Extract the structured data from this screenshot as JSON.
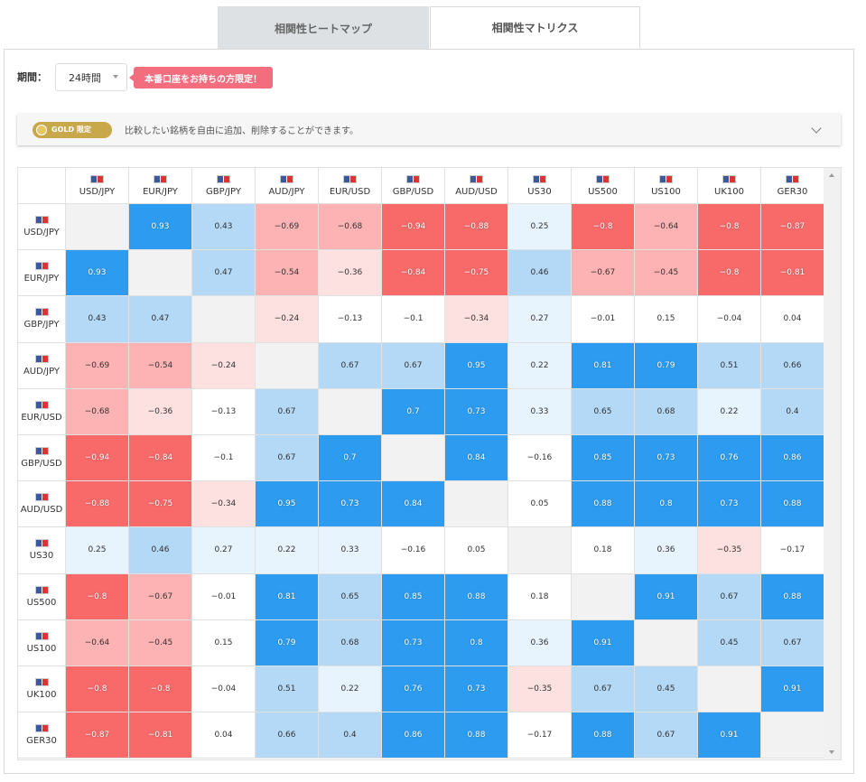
{
  "tabs": {
    "heatmap": "相関性ヒートマップ",
    "matrix": "相関性マトリクス"
  },
  "period": {
    "label": "期間：",
    "value": "24時間"
  },
  "badge": "本番口座をお持ちの方限定！",
  "gold_bar": {
    "pill": "GOLD 限定",
    "text": "比較したい銘柄を自由に追加、削除することができます。"
  },
  "colors": {
    "strong_pos": "#2d9cf0",
    "mid_pos": "#b3d9f7",
    "weak_pos": "#e8f4fd",
    "strong_neg": "#f86a6a",
    "mid_neg": "#fdb3b3",
    "weak_neg": "#fde0e0",
    "diag": "#f2f2f2"
  },
  "instruments": [
    {
      "label": "USD/JPY",
      "flag": "us-jp-flag"
    },
    {
      "label": "EUR/JPY",
      "flag": "eu-jp-flag"
    },
    {
      "label": "GBP/JPY",
      "flag": "gb-jp-flag"
    },
    {
      "label": "AUD/JPY",
      "flag": "au-jp-flag"
    },
    {
      "label": "EUR/USD",
      "flag": "eu-us-flag"
    },
    {
      "label": "GBP/USD",
      "flag": "gb-us-flag"
    },
    {
      "label": "AUD/USD",
      "flag": "au-us-flag"
    },
    {
      "label": "US30",
      "flag": "us-flag"
    },
    {
      "label": "US500",
      "flag": "us-flag"
    },
    {
      "label": "US100",
      "flag": "us-flag"
    },
    {
      "label": "UK100",
      "flag": "gb-flag"
    },
    {
      "label": "GER30",
      "flag": "de-flag"
    }
  ],
  "matrix": [
    [
      null,
      "0.93",
      "0.43",
      "-0.69",
      "-0.68",
      "-0.94",
      "-0.88",
      "0.25",
      "-0.8",
      "-0.64",
      "-0.8",
      "-0.87"
    ],
    [
      "0.93",
      null,
      "0.47",
      "-0.54",
      "-0.36",
      "-0.84",
      "-0.75",
      "0.46",
      "-0.67",
      "-0.45",
      "-0.8",
      "-0.81"
    ],
    [
      "0.43",
      "0.47",
      null,
      "-0.24",
      "-0.13",
      "-0.1",
      "-0.34",
      "0.27",
      "-0.01",
      "0.15",
      "-0.04",
      "0.04"
    ],
    [
      "-0.69",
      "-0.54",
      "-0.24",
      null,
      "0.67",
      "0.67",
      "0.95",
      "0.22",
      "0.81",
      "0.79",
      "0.51",
      "0.66"
    ],
    [
      "-0.68",
      "-0.36",
      "-0.13",
      "0.67",
      null,
      "0.7",
      "0.73",
      "0.33",
      "0.65",
      "0.68",
      "0.22",
      "0.4"
    ],
    [
      "-0.94",
      "-0.84",
      "-0.1",
      "0.67",
      "0.7",
      null,
      "0.84",
      "-0.16",
      "0.85",
      "0.73",
      "0.76",
      "0.86"
    ],
    [
      "-0.88",
      "-0.75",
      "-0.34",
      "0.95",
      "0.73",
      "0.84",
      null,
      "0.05",
      "0.88",
      "0.8",
      "0.73",
      "0.88"
    ],
    [
      "0.25",
      "0.46",
      "0.27",
      "0.22",
      "0.33",
      "-0.16",
      "0.05",
      null,
      "0.18",
      "0.36",
      "-0.35",
      "-0.17"
    ],
    [
      "-0.8",
      "-0.67",
      "-0.01",
      "0.81",
      "0.65",
      "0.85",
      "0.88",
      "0.18",
      null,
      "0.91",
      "0.67",
      "0.88"
    ],
    [
      "-0.64",
      "-0.45",
      "0.15",
      "0.79",
      "0.68",
      "0.73",
      "0.8",
      "0.36",
      "0.91",
      null,
      "0.45",
      "0.67"
    ],
    [
      "-0.8",
      "-0.8",
      "-0.04",
      "0.51",
      "0.22",
      "0.76",
      "0.73",
      "-0.35",
      "0.67",
      "0.45",
      null,
      "0.91"
    ],
    [
      "-0.87",
      "-0.81",
      "0.04",
      "0.66",
      "0.4",
      "0.86",
      "0.88",
      "-0.17",
      "0.88",
      "0.67",
      "0.91",
      null
    ]
  ]
}
